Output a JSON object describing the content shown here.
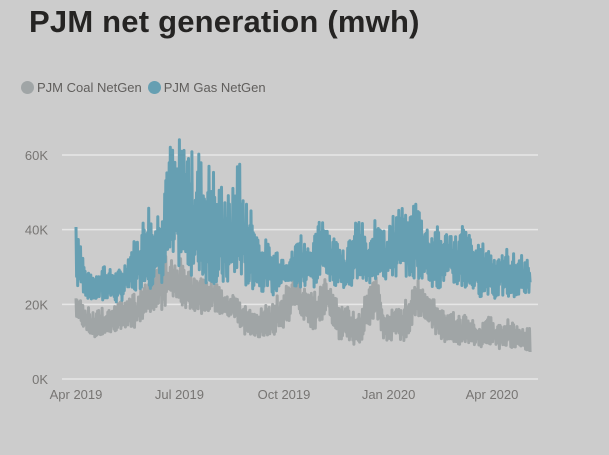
{
  "chart_data": {
    "type": "line",
    "title": "PJM net generation (mwh)",
    "xlabel": "",
    "ylabel": "",
    "x_start": "2019-04-01",
    "x_step_days": 4,
    "x_end": "2020-04-30",
    "ylim": [
      0,
      66000
    ],
    "yticks": [
      0,
      20000,
      40000,
      60000
    ],
    "ytick_labels": [
      "0K",
      "20K",
      "40K",
      "60K"
    ],
    "xticks": [
      "2019-04-01",
      "2019-07-01",
      "2019-10-01",
      "2020-01-01",
      "2020-04-01"
    ],
    "xtick_labels": [
      "Apr 2019",
      "Jul 2019",
      "Oct 2019",
      "Jan 2020",
      "Apr 2020"
    ],
    "grid": true,
    "legend_position": "top-left",
    "series": [
      {
        "name": "PJM Gas NetGen",
        "color": "#669fb2",
        "min": [
          23000,
          24000,
          22000,
          21000,
          21000,
          21000,
          20000,
          22000,
          21000,
          20000,
          21000,
          24000,
          22000,
          23000,
          24000,
          26000,
          24000,
          25000,
          26000,
          25000,
          30000,
          29000,
          30000,
          29000,
          30000,
          28000,
          26000,
          27000,
          26000,
          25000,
          26000,
          23000,
          24000,
          24000,
          27000,
          25000,
          27000,
          25000,
          23000,
          24000,
          25000,
          23000,
          25000,
          22000,
          23000,
          25000,
          26000,
          25000,
          24000,
          23000,
          24000,
          27000,
          24000,
          25000,
          26000,
          28000,
          24000,
          25000,
          27000,
          23000,
          24000,
          26000,
          26000,
          27000,
          25000,
          24000,
          27000,
          28000,
          26000,
          27000,
          27000,
          26000,
          27000,
          28000,
          26000,
          26000,
          27000,
          27000,
          25000,
          24000,
          24000,
          26000,
          25000,
          24000,
          25000,
          24000,
          23000,
          24000,
          22000,
          22000,
          22000,
          23000,
          21000,
          22000,
          22000,
          21000,
          22000,
          22000,
          22000,
          23000
        ],
        "max": [
          46000,
          38000,
          30000,
          28000,
          28000,
          30000,
          32000,
          29000,
          30000,
          29000,
          30000,
          32000,
          36000,
          38000,
          40000,
          44000,
          48000,
          42000,
          46000,
          52000,
          62000,
          64000,
          60000,
          66000,
          62000,
          65000,
          58000,
          63000,
          56000,
          58000,
          60000,
          50000,
          54000,
          52000,
          48000,
          55000,
          64000,
          46000,
          50000,
          44000,
          40000,
          36000,
          38000,
          34000,
          36000,
          34000,
          33000,
          34000,
          35000,
          42000,
          38000,
          36000,
          37000,
          40000,
          46000,
          44000,
          40000,
          38000,
          38000,
          36000,
          37000,
          40000,
          44000,
          42000,
          36000,
          38000,
          44000,
          47000,
          40000,
          42000,
          45000,
          48000,
          46000,
          42000,
          48000,
          49000,
          45000,
          42000,
          40000,
          42000,
          40000,
          39000,
          41000,
          40000,
          38000,
          42000,
          40000,
          38000,
          36000,
          36000,
          37000,
          35000,
          34000,
          35000,
          33000,
          36000,
          34000,
          33000,
          34000,
          32000
        ]
      },
      {
        "name": "PJM Coal NetGen",
        "color": "#a0a5a6",
        "min": [
          13000,
          14000,
          13000,
          12000,
          11000,
          11000,
          12000,
          12000,
          12000,
          13000,
          13000,
          14000,
          14000,
          13000,
          14000,
          16000,
          17000,
          18000,
          19000,
          18000,
          20000,
          22000,
          21000,
          20000,
          19000,
          18000,
          18000,
          17000,
          18000,
          18000,
          19000,
          17000,
          16000,
          16000,
          17000,
          15000,
          13000,
          12000,
          12000,
          10000,
          11000,
          10000,
          11000,
          11000,
          12000,
          13000,
          14000,
          16000,
          19000,
          17000,
          15000,
          14000,
          13000,
          14000,
          16000,
          18000,
          15000,
          12000,
          10000,
          11000,
          10000,
          9000,
          9000,
          11000,
          14000,
          15000,
          17000,
          12000,
          10000,
          10000,
          11000,
          10000,
          9000,
          12000,
          14000,
          16000,
          16000,
          15000,
          14000,
          12000,
          11000,
          10000,
          10000,
          10000,
          9000,
          9000,
          9000,
          9000,
          9000,
          8000,
          9000,
          9000,
          9000,
          8000,
          9000,
          9000,
          8000,
          8000,
          8000,
          7000
        ],
        "max": [
          24000,
          22000,
          20000,
          19000,
          18000,
          19000,
          19000,
          20000,
          19000,
          20000,
          22000,
          21000,
          22000,
          23000,
          24000,
          25000,
          26000,
          28000,
          30000,
          34000,
          33000,
          32000,
          31000,
          34000,
          30000,
          29000,
          28000,
          27000,
          28000,
          26000,
          27000,
          26000,
          25000,
          23000,
          22000,
          24000,
          22000,
          20000,
          19000,
          18000,
          20000,
          19000,
          20000,
          21000,
          22000,
          24000,
          26000,
          27000,
          30000,
          27000,
          25000,
          24000,
          23000,
          24000,
          26000,
          27000,
          25000,
          22000,
          20000,
          20000,
          19000,
          18000,
          17000,
          20000,
          24000,
          25000,
          28000,
          22000,
          19000,
          18000,
          20000,
          19000,
          20000,
          23000,
          26000,
          27000,
          25000,
          24000,
          22000,
          21000,
          19000,
          18000,
          18000,
          18000,
          17000,
          17000,
          18000,
          16000,
          15000,
          15000,
          16000,
          17000,
          16000,
          16000,
          15000,
          16000,
          15000,
          15000,
          14000,
          14000
        ]
      }
    ]
  }
}
